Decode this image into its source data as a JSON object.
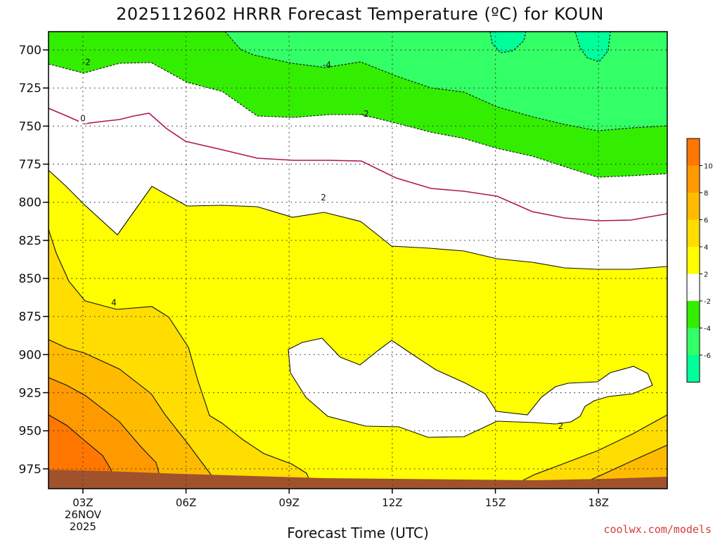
{
  "title": "2025112602 HRRR Forecast Temperature (ºC) for KOUN",
  "credit": "coolwx.com/models",
  "colors": {
    "below_minus6": "#00ff99",
    "minus6_minus4": "#33ff66",
    "minus4_minus2": "#33ee00",
    "minus2_2": "#ffffff",
    "2_4": "#ffff00",
    "4_6": "#ffdd00",
    "6_8": "#ffbb00",
    "8_10": "#ff9900",
    "above_10": "#ff7700",
    "ground": "#a0522d",
    "zero_line": "#b0145a"
  },
  "chart_data": {
    "type": "heatmap",
    "title": "2025112602 HRRR Forecast Temperature (ºC) for KOUN",
    "xlabel": "Forecast Time (UTC)",
    "ylabel": "",
    "x_hours_range": [
      2,
      20
    ],
    "y_range_hPa": [
      988,
      688
    ],
    "x_ticks": [
      {
        "hour": 3,
        "label": "03Z",
        "sub1": "26NOV",
        "sub2": "2025"
      },
      {
        "hour": 6,
        "label": "06Z"
      },
      {
        "hour": 9,
        "label": "09Z"
      },
      {
        "hour": 12,
        "label": "12Z"
      },
      {
        "hour": 15,
        "label": "15Z"
      },
      {
        "hour": 18,
        "label": "18Z"
      }
    ],
    "y_ticks": [
      "700",
      "725",
      "750",
      "775",
      "800",
      "825",
      "850",
      "875",
      "900",
      "925",
      "950",
      "975"
    ],
    "grid": true,
    "colorbar": {
      "position": "right",
      "labels": [
        "10",
        "8",
        "6",
        "4",
        "2",
        "-2",
        "-4",
        "-6"
      ]
    },
    "contour_labels": [
      {
        "text": "-2",
        "hour": 3.1,
        "hPa": 708
      },
      {
        "text": "-4",
        "hour": 10.1,
        "hPa": 710
      },
      {
        "text": "-2",
        "hour": 11.2,
        "hPa": 742
      },
      {
        "text": "0",
        "hour": 3.0,
        "hPa": 745
      },
      {
        "text": "2",
        "hour": 10.0,
        "hPa": 797
      },
      {
        "text": "4",
        "hour": 3.9,
        "hPa": 866
      },
      {
        "text": "2",
        "hour": 16.9,
        "hPa": 947
      }
    ]
  }
}
